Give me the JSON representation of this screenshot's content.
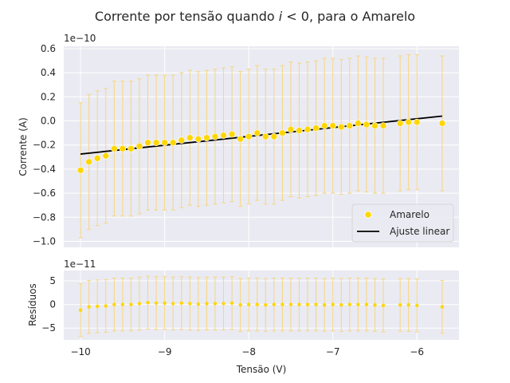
{
  "chart_data": [
    {
      "type": "scatter",
      "panel": "main",
      "title": "Corrente por tensão quando i < 0, para o Amarelo",
      "title_parts": {
        "before": "Corrente por tensão quando ",
        "var": "i",
        "after": " < 0, para o Amarelo"
      },
      "xlabel": "",
      "ylabel": "Corrente (A)",
      "y_offset_text": "1e−10",
      "xlim": [
        -10.2,
        -5.5
      ],
      "ylim": [
        -1.05,
        0.62
      ],
      "y_scale_note": "values in units of 1e-10 A",
      "y_ticks": [
        -1.0,
        -0.8,
        -0.6,
        -0.4,
        -0.2,
        0.0,
        0.2,
        0.4,
        0.6
      ],
      "y_tick_labels": [
        "−1.0",
        "−0.8",
        "−0.6",
        "−0.4",
        "−0.2",
        "0.0",
        "0.2",
        "0.4",
        "0.6"
      ],
      "grid": true,
      "legend": {
        "placement": "lower-right",
        "entries": [
          "Amarelo",
          "Ajuste linear"
        ]
      },
      "colors": {
        "points": "#ffd700",
        "errorbars": "#f6d67e",
        "fit": "#000000",
        "background": "#eaeaf2",
        "grid": "#ffffff"
      },
      "series": [
        {
          "name": "Amarelo",
          "kind": "points_with_errorbars",
          "x": [
            -10.0,
            -9.9,
            -9.8,
            -9.7,
            -9.6,
            -9.5,
            -9.4,
            -9.3,
            -9.2,
            -9.1,
            -9.0,
            -8.9,
            -8.8,
            -8.7,
            -8.6,
            -8.5,
            -8.4,
            -8.3,
            -8.2,
            -8.1,
            -8.0,
            -7.9,
            -7.8,
            -7.7,
            -7.6,
            -7.5,
            -7.4,
            -7.3,
            -7.2,
            -7.1,
            -7.0,
            -6.9,
            -6.8,
            -6.7,
            -6.6,
            -6.5,
            -6.4,
            -6.2,
            -6.1,
            -6.0,
            -5.7
          ],
          "y": [
            -0.41,
            -0.34,
            -0.31,
            -0.29,
            -0.23,
            -0.23,
            -0.23,
            -0.21,
            -0.18,
            -0.18,
            -0.18,
            -0.18,
            -0.16,
            -0.14,
            -0.15,
            -0.14,
            -0.13,
            -0.12,
            -0.11,
            -0.15,
            -0.13,
            -0.1,
            -0.13,
            -0.13,
            -0.1,
            -0.07,
            -0.08,
            -0.07,
            -0.06,
            -0.04,
            -0.04,
            -0.05,
            -0.04,
            -0.02,
            -0.03,
            -0.04,
            -0.04,
            -0.02,
            -0.01,
            -0.01,
            -0.02
          ],
          "yerr": [
            0.56,
            0.56,
            0.56,
            0.56,
            0.56,
            0.56,
            0.56,
            0.56,
            0.56,
            0.56,
            0.56,
            0.56,
            0.56,
            0.56,
            0.56,
            0.56,
            0.56,
            0.56,
            0.56,
            0.56,
            0.56,
            0.56,
            0.56,
            0.56,
            0.56,
            0.56,
            0.56,
            0.56,
            0.56,
            0.56,
            0.56,
            0.56,
            0.56,
            0.56,
            0.56,
            0.56,
            0.56,
            0.56,
            0.56,
            0.56,
            0.56
          ]
        },
        {
          "name": "Ajuste linear",
          "kind": "line",
          "x": [
            -10.0,
            -5.7
          ],
          "y": [
            -0.275,
            0.04
          ]
        }
      ]
    },
    {
      "type": "scatter",
      "panel": "residuals",
      "title": "",
      "xlabel": "Tensão (V)",
      "ylabel": "Resíduos",
      "y_offset_text": "1e−11",
      "xlim": [
        -10.2,
        -5.5
      ],
      "ylim": [
        -7.5,
        7.2
      ],
      "x_ticks": [
        -10,
        -9,
        -8,
        -7,
        -6
      ],
      "x_tick_labels": [
        "−10",
        "−9",
        "−8",
        "−7",
        "−6"
      ],
      "y_ticks": [
        -5,
        0,
        5
      ],
      "y_tick_labels": [
        "−5",
        "0",
        "5"
      ],
      "grid": true,
      "series": [
        {
          "kind": "points_with_errorbars",
          "x": [
            -10.0,
            -9.9,
            -9.8,
            -9.7,
            -9.6,
            -9.5,
            -9.4,
            -9.3,
            -9.2,
            -9.1,
            -9.0,
            -8.9,
            -8.8,
            -8.7,
            -8.6,
            -8.5,
            -8.4,
            -8.3,
            -8.2,
            -8.1,
            -8.0,
            -7.9,
            -7.8,
            -7.7,
            -7.6,
            -7.5,
            -7.4,
            -7.3,
            -7.2,
            -7.1,
            -7.0,
            -6.9,
            -6.8,
            -6.7,
            -6.6,
            -6.5,
            -6.4,
            -6.2,
            -6.1,
            -6.0,
            -5.7
          ],
          "y": [
            -1.2,
            -0.5,
            -0.4,
            -0.3,
            0.0,
            0.0,
            0.0,
            0.2,
            0.4,
            0.3,
            0.3,
            0.2,
            0.3,
            0.2,
            0.1,
            0.2,
            0.2,
            0.2,
            0.3,
            -0.1,
            0.0,
            0.0,
            -0.1,
            0.0,
            0.0,
            0.0,
            0.0,
            0.0,
            0.0,
            -0.1,
            0.0,
            -0.1,
            0.0,
            0.0,
            0.0,
            -0.1,
            -0.2,
            -0.1,
            -0.1,
            -0.2,
            -0.5
          ],
          "yerr": [
            5.6,
            5.6,
            5.6,
            5.6,
            5.6,
            5.6,
            5.6,
            5.6,
            5.6,
            5.6,
            5.6,
            5.6,
            5.6,
            5.6,
            5.6,
            5.6,
            5.6,
            5.6,
            5.6,
            5.6,
            5.6,
            5.6,
            5.6,
            5.6,
            5.6,
            5.6,
            5.6,
            5.6,
            5.6,
            5.6,
            5.6,
            5.6,
            5.6,
            5.6,
            5.6,
            5.6,
            5.6,
            5.6,
            5.6,
            5.6,
            5.6
          ]
        }
      ]
    }
  ]
}
